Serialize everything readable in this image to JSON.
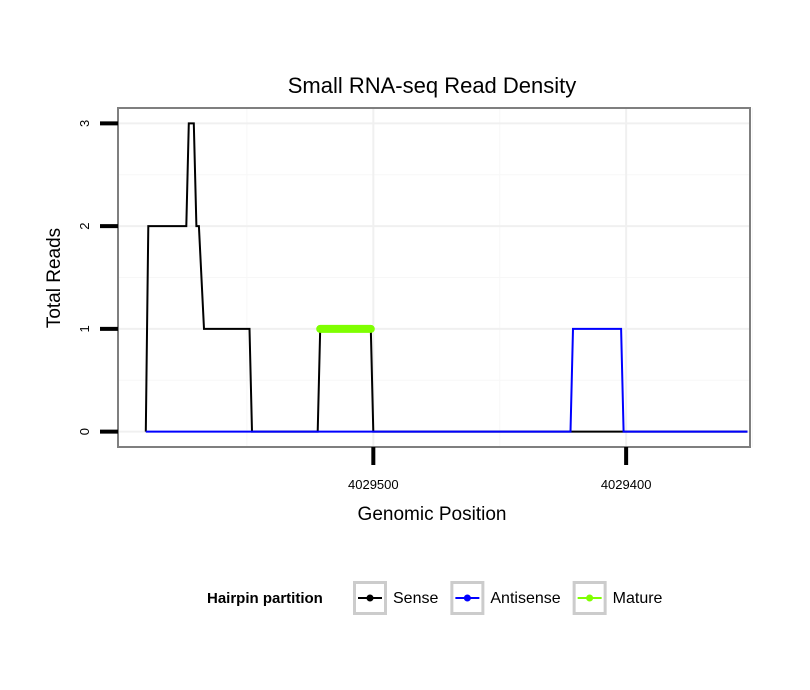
{
  "chart_data": {
    "type": "line",
    "title": "Small RNA-seq Read Density",
    "xlabel": "Genomic Position",
    "ylabel": "Total Reads",
    "x_reversed": true,
    "xlim": [
      4029601,
      4029351
    ],
    "ylim": [
      -0.15,
      3.15
    ],
    "x_ticks": [
      {
        "value": 4029500,
        "label": "4029500"
      },
      {
        "value": 4029400,
        "label": "4029400"
      }
    ],
    "y_ticks": [
      {
        "value": 0,
        "label": "0"
      },
      {
        "value": 1,
        "label": "1"
      },
      {
        "value": 2,
        "label": "2"
      },
      {
        "value": 3,
        "label": "3"
      }
    ],
    "grid": true,
    "legend": {
      "title": "Hairpin partition",
      "position": "bottom",
      "entries": [
        {
          "name": "Sense",
          "color": "#000000"
        },
        {
          "name": "Antisense",
          "color": "#0000ff"
        },
        {
          "name": "Mature",
          "color": "#7fff00"
        }
      ]
    },
    "series": [
      {
        "name": "Sense",
        "color": "#000000",
        "points": [
          [
            4029590,
            0
          ],
          [
            4029589,
            2
          ],
          [
            4029574,
            2
          ],
          [
            4029573,
            3
          ],
          [
            4029571,
            3
          ],
          [
            4029570,
            2
          ],
          [
            4029569,
            2
          ],
          [
            4029567,
            1
          ],
          [
            4029549,
            1
          ],
          [
            4029548,
            0
          ],
          [
            4029522,
            0
          ],
          [
            4029521,
            1
          ],
          [
            4029501,
            1
          ],
          [
            4029500,
            0
          ],
          [
            4029352,
            0
          ]
        ]
      },
      {
        "name": "Antisense",
        "color": "#0000ff",
        "points": [
          [
            4029590,
            0
          ],
          [
            4029422,
            0
          ],
          [
            4029421,
            1
          ],
          [
            4029402,
            1
          ],
          [
            4029401,
            0
          ],
          [
            4029352,
            0
          ]
        ]
      },
      {
        "name": "Mature",
        "color": "#7fff00",
        "points": [
          [
            4029521,
            1
          ],
          [
            4029501,
            1
          ]
        ]
      }
    ]
  }
}
